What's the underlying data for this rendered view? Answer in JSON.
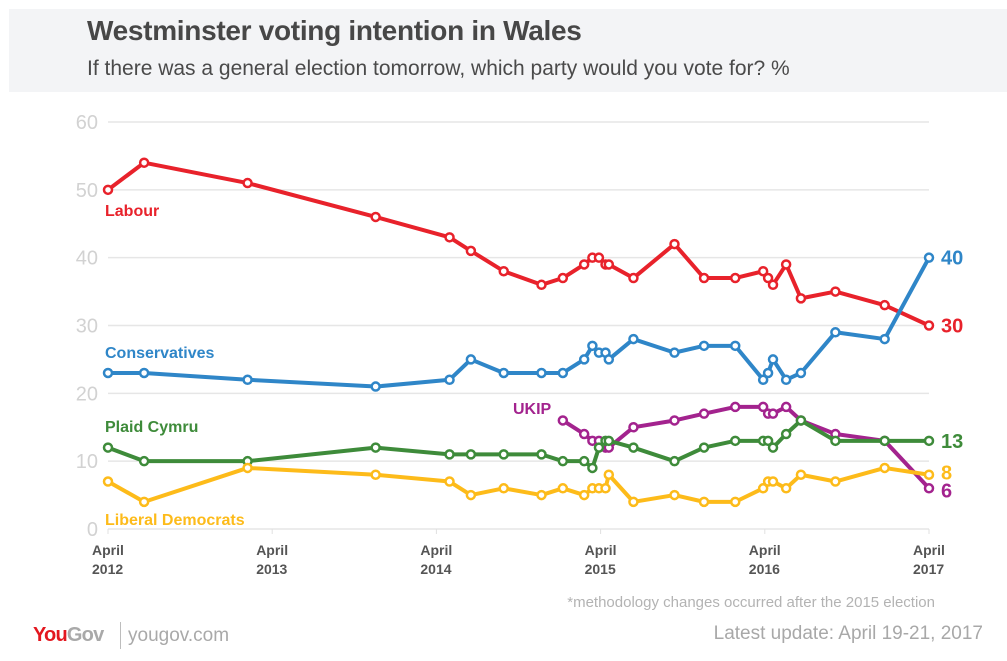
{
  "header": {
    "title": "Westminster voting intention in Wales",
    "subtitle": "If there was a general election tomorrow, which party would you vote for? %"
  },
  "footer": {
    "footnote": "*methodology changes occurred after the 2015 election",
    "latest_update": "Latest update: April 19-21, 2017",
    "logo_you": "You",
    "logo_gov": "Gov",
    "site": "yougov.com"
  },
  "chart_data": {
    "type": "line",
    "title": "Westminster voting intention in Wales",
    "subtitle": "If there was a general election tomorrow, which party would you vote for? %",
    "xlabel": "",
    "ylabel": "%",
    "ylim": [
      0,
      60
    ],
    "yticks": [
      0,
      10,
      20,
      30,
      40,
      50,
      60
    ],
    "xlim_years_since_april_2012": [
      0,
      5
    ],
    "xticks": [
      {
        "value": 0,
        "line1": "April",
        "line2": "2012"
      },
      {
        "value": 1,
        "line1": "April",
        "line2": "2013"
      },
      {
        "value": 2,
        "line1": "April",
        "line2": "2014"
      },
      {
        "value": 3,
        "line1": "April",
        "line2": "2015"
      },
      {
        "value": 4,
        "line1": "April",
        "line2": "2016"
      },
      {
        "value": 5,
        "line1": "April",
        "line2": "2017"
      }
    ],
    "grid": true,
    "x_unit": "years since April 2012",
    "series": [
      {
        "name": "Labour",
        "color": "#e8222b",
        "label": "Labour",
        "end_label": "30",
        "x": [
          0,
          0.22,
          0.85,
          1.63,
          2.08,
          2.21,
          2.41,
          2.64,
          2.77,
          2.9,
          2.95,
          2.99,
          3.03,
          3.05,
          3.2,
          3.45,
          3.63,
          3.82,
          3.99,
          4.02,
          4.05,
          4.13,
          4.22,
          4.43,
          4.73,
          5.0
        ],
        "values": [
          50,
          54,
          51,
          46,
          43,
          41,
          38,
          36,
          37,
          39,
          40,
          40,
          39,
          39,
          37,
          42,
          37,
          37,
          38,
          37,
          36,
          39,
          34,
          35,
          33,
          30
        ]
      },
      {
        "name": "Conservatives",
        "color": "#2f86c8",
        "label": "Conservatives",
        "end_label": "40",
        "x": [
          0,
          0.22,
          0.85,
          1.63,
          2.08,
          2.21,
          2.41,
          2.64,
          2.77,
          2.9,
          2.95,
          2.99,
          3.03,
          3.05,
          3.2,
          3.45,
          3.63,
          3.82,
          3.99,
          4.02,
          4.05,
          4.13,
          4.22,
          4.43,
          4.73,
          5.0
        ],
        "values": [
          23,
          23,
          22,
          21,
          22,
          25,
          23,
          23,
          23,
          25,
          27,
          26,
          26,
          25,
          28,
          26,
          27,
          27,
          22,
          23,
          25,
          22,
          23,
          29,
          28,
          40
        ]
      },
      {
        "name": "UKIP",
        "color": "#a3238e",
        "label": "UKIP",
        "end_label": "6",
        "x": [
          2.77,
          2.9,
          2.95,
          2.99,
          3.03,
          3.05,
          3.2,
          3.45,
          3.63,
          3.82,
          3.99,
          4.02,
          4.05,
          4.13,
          4.22,
          4.43,
          4.73,
          5.0
        ],
        "values": [
          16,
          14,
          13,
          13,
          12,
          12,
          15,
          16,
          17,
          18,
          18,
          17,
          17,
          18,
          16,
          14,
          13,
          6
        ]
      },
      {
        "name": "Plaid Cymru",
        "color": "#3e8b3a",
        "label": "Plaid Cymru",
        "end_label": "13",
        "x": [
          0,
          0.22,
          0.85,
          1.63,
          2.08,
          2.21,
          2.41,
          2.64,
          2.77,
          2.9,
          2.95,
          2.99,
          3.03,
          3.05,
          3.2,
          3.45,
          3.63,
          3.82,
          3.99,
          4.02,
          4.05,
          4.13,
          4.22,
          4.43,
          4.73,
          5.0
        ],
        "values": [
          12,
          10,
          10,
          12,
          11,
          11,
          11,
          11,
          10,
          10,
          9,
          12,
          13,
          13,
          12,
          10,
          12,
          13,
          13,
          13,
          12,
          14,
          16,
          13,
          13,
          13
        ]
      },
      {
        "name": "Liberal Democrats",
        "color": "#fdbb1a",
        "label": "Liberal Democrats",
        "end_label": "8",
        "x": [
          0,
          0.22,
          0.85,
          1.63,
          2.08,
          2.21,
          2.41,
          2.64,
          2.77,
          2.9,
          2.95,
          2.99,
          3.03,
          3.05,
          3.2,
          3.45,
          3.63,
          3.82,
          3.99,
          4.02,
          4.05,
          4.13,
          4.22,
          4.43,
          4.73,
          5.0
        ],
        "values": [
          7,
          4,
          9,
          8,
          7,
          5,
          6,
          5,
          6,
          5,
          6,
          6,
          6,
          8,
          4,
          5,
          4,
          4,
          6,
          7,
          7,
          6,
          8,
          7,
          9,
          8
        ]
      }
    ]
  }
}
